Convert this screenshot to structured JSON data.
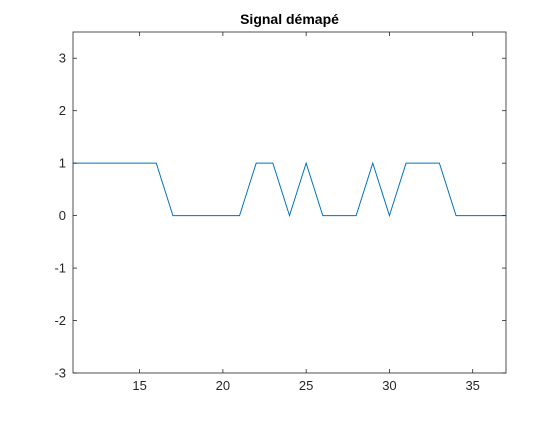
{
  "chart_data": {
    "type": "line",
    "title": "Signal démapé",
    "xlabel": "",
    "ylabel": "",
    "xlim": [
      11,
      37
    ],
    "ylim": [
      -3,
      3.5
    ],
    "xticks": [
      15,
      20,
      25,
      30,
      35
    ],
    "yticks": [
      -3,
      -2,
      -1,
      0,
      1,
      2,
      3
    ],
    "grid": false,
    "legend": "none",
    "series": [
      {
        "color": "#0072BD",
        "x": [
          11,
          12,
          13,
          14,
          15,
          16,
          17,
          18,
          19,
          20,
          21,
          22,
          23,
          24,
          25,
          26,
          27,
          28,
          29,
          30,
          31,
          32,
          33,
          34,
          35,
          36,
          37
        ],
        "values": [
          1,
          1,
          1,
          1,
          1,
          1,
          0,
          0,
          0,
          0,
          0,
          1,
          1,
          0,
          1,
          0,
          0,
          0,
          1,
          0,
          1,
          1,
          1,
          0,
          0,
          0,
          0
        ]
      }
    ]
  }
}
